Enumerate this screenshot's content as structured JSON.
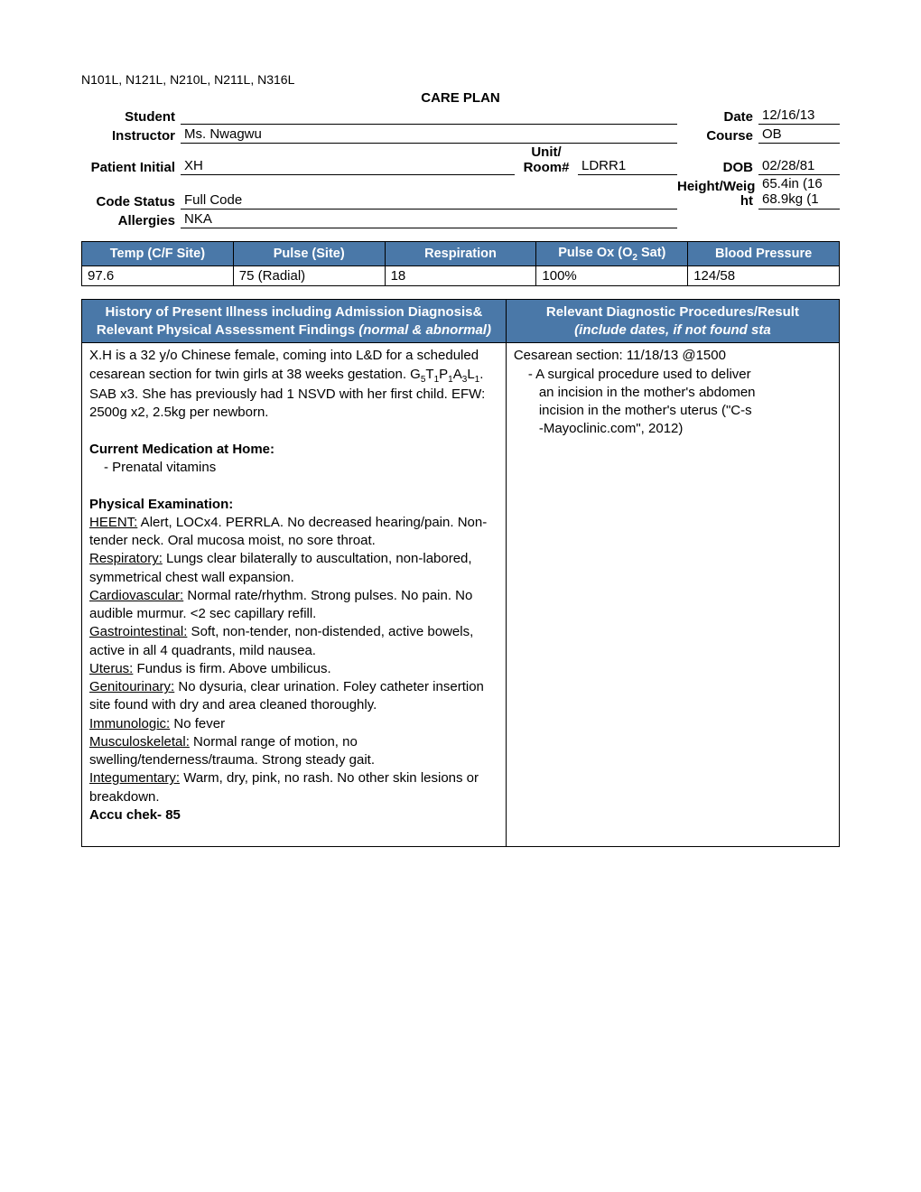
{
  "course_codes": "N101L, N121L, N210L, N211L, N316L",
  "title": "CARE PLAN",
  "header": {
    "student_lbl": "Student",
    "student_val": "",
    "date_lbl": "Date",
    "date_val": "12/16/13",
    "instructor_lbl": "Instructor",
    "instructor_val": "Ms. Nwagwu",
    "course_lbl": "Course",
    "course_val": "OB",
    "patient_lbl": "Patient Initial",
    "patient_val": "XH",
    "unit_lbl_a": "Unit/",
    "unit_lbl_b": "Room#",
    "unit_val": "LDRR1",
    "dob_lbl": "DOB",
    "dob_val": "02/28/81",
    "code_lbl": "Code Status",
    "code_val": "Full Code",
    "hw_lbl_a": "Height/Weig",
    "hw_lbl_b": "ht",
    "hw_val_a": "65.4in (16",
    "hw_val_b": "68.9kg (1",
    "allergies_lbl": "Allergies",
    "allergies_val": "NKA"
  },
  "vitals": {
    "headers": [
      "Temp  (C/F Site)",
      "Pulse  (Site)",
      "Respiration",
      "Pulse Ox (O",
      " Sat)",
      "Blood Pressure"
    ],
    "row": [
      "97.6",
      "75 (Radial)",
      "18",
      "100%",
      "124/58"
    ]
  },
  "main_headers": {
    "left_a": "History of Present Illness including Admission Diagnosis&",
    "left_b": "Relevant Physical Assessment Findings ",
    "left_c": "(normal & abnormal)",
    "right_a": "Relevant Diagnostic Procedures/Result",
    "right_b": "(include dates, if not found sta"
  },
  "left": {
    "intro_a": "X.H is a 32 y/o Chinese female, coming into L&D for a scheduled cesarean section for twin girls at 38 weeks gestation. G",
    "g5": "5",
    "t": "T",
    "t1": "1",
    "p": "P",
    "p1": "1",
    "a": "A",
    "a3": "3",
    "l": "L",
    "l1": "1",
    "intro_b": ".  SAB x3.  She has previously had 1 NSVD with her first child. EFW: 2500g x2, 2.5kg per newborn.",
    "med_hdr": "Current Medication at Home:",
    "med_item": "Prenatal vitamins",
    "pe_hdr": "Physical Examination:",
    "heent_lbl": "HEENT:",
    "heent_txt": " Alert, LOCx4. PERRLA. No decreased hearing/pain. Non-tender neck. Oral mucosa moist, no sore throat.",
    "resp_lbl": "Respiratory:",
    "resp_txt": " Lungs clear bilaterally to auscultation, non-labored, symmetrical chest wall expansion.",
    "cv_lbl": "Cardiovascular:",
    "cv_txt": " Normal rate/rhythm. Strong pulses. No pain. No audible murmur. <2 sec capillary refill.",
    "gi_lbl": "Gastrointestinal:",
    "gi_txt": " Soft, non-tender, non-distended, active bowels, active in all 4 quadrants, mild nausea.",
    "ut_lbl": "Uterus:",
    "ut_txt": " Fundus is firm. Above umbilicus.",
    "gu_lbl": "Genitourinary:",
    "gu_txt": " No dysuria, clear urination. Foley catheter insertion site found with dry and area cleaned thoroughly.",
    "imm_lbl": "Immunologic:",
    "imm_txt": " No fever",
    "ms_lbl": "Musculoskeletal:",
    "ms_txt": " Normal range of motion, no swelling/tenderness/trauma. Strong steady gait.",
    "int_lbl": "Integumentary:",
    "int_txt": " Warm, dry, pink, no rash. No other skin lesions or breakdown.",
    "accu": "Accu chek- 85"
  },
  "right": {
    "line1": "Cesarean section: 11/18/13 @1500",
    "bullet_a": "A surgical procedure used to deliver",
    "bullet_b": "an incision in the mother's abdomen",
    "bullet_c": "incision in the mother's uterus (\"C-s",
    "bullet_d": "-Mayoclinic.com\", 2012)"
  },
  "colors": {
    "header_bg": "#4a78a8",
    "header_fg": "#ffffff",
    "border": "#000000",
    "page_bg": "#ffffff"
  }
}
